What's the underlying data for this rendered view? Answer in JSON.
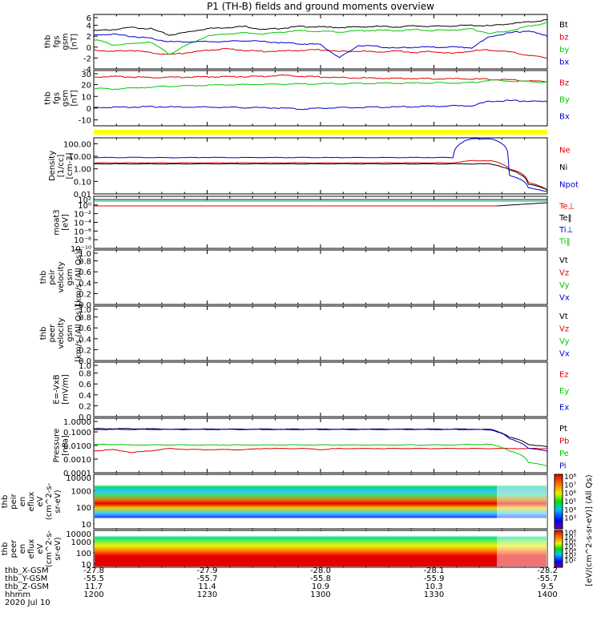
{
  "title": "P1 (TH-B) fields and ground moments overview",
  "colors": {
    "black": "#000000",
    "red": "#e00000",
    "green": "#00c800",
    "blue": "#0000d0",
    "yellow": "#ffff00"
  },
  "chart_data": [
    {
      "id": "fgs",
      "type": "line",
      "ylabel": [
        "thb",
        "fgs",
        "gsm",
        "[nT]"
      ],
      "ylim": [
        -4,
        6
      ],
      "yticks": [
        6,
        4,
        2,
        0,
        -2,
        -4
      ],
      "series": [
        {
          "name": "Bt",
          "color": "#000000",
          "values": [
            3.0,
            3.2,
            3.6,
            3.4,
            2.2,
            2.8,
            3.4,
            3.6,
            3.8,
            3.2,
            3.5,
            3.8,
            3.7,
            3.6,
            3.7,
            3.8,
            3.7,
            3.9,
            3.8,
            3.9,
            4.0,
            3.9,
            4.3,
            4.6,
            5.0
          ]
        },
        {
          "name": "bz",
          "color": "#e00000",
          "values": [
            -0.5,
            -0.8,
            -0.6,
            -1.0,
            -1.4,
            -1.0,
            -0.6,
            -0.3,
            -0.6,
            -0.8,
            -0.7,
            -0.6,
            -0.5,
            -0.8,
            -0.7,
            -0.9,
            -0.7,
            -1.0,
            -0.8,
            -1.2,
            -0.7,
            -0.5,
            -0.9,
            -1.5,
            -2.0
          ]
        },
        {
          "name": "by",
          "color": "#00c800",
          "values": [
            1.5,
            0.4,
            0.6,
            1.0,
            -1.3,
            0.5,
            2.0,
            2.4,
            2.6,
            2.4,
            2.8,
            3.0,
            2.9,
            2.8,
            3.0,
            3.1,
            3.0,
            3.2,
            3.0,
            3.2,
            3.3,
            2.5,
            3.0,
            3.8,
            4.5
          ]
        },
        {
          "name": "bx",
          "color": "#0000d0",
          "values": [
            2.2,
            2.4,
            2.0,
            1.6,
            1.0,
            1.0,
            1.0,
            1.0,
            1.2,
            1.0,
            0.8,
            0.6,
            0.5,
            -2.0,
            0.3,
            0.1,
            -0.2,
            0.0,
            0.0,
            0.0,
            -0.1,
            2.0,
            2.6,
            3.0,
            2.0
          ]
        }
      ]
    },
    {
      "id": "fgs2",
      "type": "line",
      "ylabel": [
        "thb",
        "fgs",
        "gsm",
        "[nT]"
      ],
      "ylim": [
        -15,
        32
      ],
      "yticks": [
        30,
        20,
        10,
        0,
        -10
      ],
      "series": [
        {
          "name": "Bz",
          "color": "#e00000",
          "values": [
            26.5,
            27.0,
            26.5,
            26.0,
            26.2,
            26.4,
            26.6,
            26.8,
            26.9,
            27.0,
            28.0,
            27.0,
            26.5,
            26.0,
            25.8,
            25.5,
            25.4,
            25.2,
            25.0,
            25.0,
            24.8,
            24.6,
            24.0,
            23.2,
            22.5
          ]
        },
        {
          "name": "By",
          "color": "#00c800",
          "values": [
            17.0,
            16.2,
            17.0,
            18.0,
            18.6,
            19.0,
            19.4,
            19.8,
            20.0,
            20.2,
            20.4,
            20.6,
            20.8,
            20.9,
            21.0,
            21.1,
            21.2,
            21.3,
            21.4,
            21.5,
            21.6,
            24.0,
            23.0,
            22.5,
            22.0
          ]
        },
        {
          "name": "Bx",
          "color": "#0000d0",
          "values": [
            0.5,
            0.8,
            1.0,
            1.2,
            1.1,
            1.0,
            0.8,
            0.6,
            0.5,
            0.3,
            0.1,
            -0.8,
            0.0,
            0.3,
            0.5,
            0.8,
            1.0,
            1.3,
            1.6,
            1.9,
            2.1,
            6.0,
            6.4,
            6.0,
            5.5
          ]
        }
      ]
    },
    {
      "id": "density",
      "type": "line",
      "yscale": "log",
      "ylabel": [
        "Density",
        "[1/cc]",
        "[cm-3]"
      ],
      "ylim": [
        0.01,
        300
      ],
      "ytick_labels": [
        "100.00",
        "10.00",
        "1.00",
        "0.10",
        "0.01"
      ],
      "yticks": [
        100,
        10,
        1,
        0.1,
        0.01
      ],
      "series": [
        {
          "name": "Ne",
          "color": "#e00000",
          "values": [
            3.0,
            3.0,
            3.0,
            3.0,
            3.0,
            3.0,
            3.0,
            3.0,
            3.0,
            3.0,
            3.0,
            3.0,
            3.0,
            3.0,
            3.0,
            3.0,
            3.0,
            3.0,
            3.0,
            3.0,
            4.5,
            4.5,
            1.0,
            0.08,
            0.02
          ]
        },
        {
          "name": "Ni",
          "color": "#000000",
          "values": [
            2.5,
            2.5,
            2.5,
            2.5,
            2.5,
            2.5,
            2.5,
            2.5,
            2.5,
            2.5,
            2.5,
            2.5,
            2.5,
            2.5,
            2.5,
            2.5,
            2.5,
            2.5,
            2.5,
            2.5,
            2.5,
            2.5,
            0.8,
            0.06,
            0.02
          ]
        },
        {
          "name": "Npot",
          "color": "#0000d0",
          "values": [
            8.0,
            8.0,
            8.2,
            8.0,
            7.8,
            8.0,
            8.2,
            8.0,
            8.0,
            8.1,
            8.0,
            8.0,
            8.0,
            8.0,
            8.0,
            8.0,
            8.0,
            8.0,
            8.0,
            8.0,
            250,
            250,
            0.3,
            0.03,
            0.015
          ]
        }
      ]
    },
    {
      "id": "moat3",
      "type": "line",
      "yscale": "log",
      "ylabel": [
        "moat3",
        "[eV]"
      ],
      "ytick_labels": [
        "10²",
        "10⁰",
        "10⁻²",
        "10⁻⁴",
        "10⁻⁶",
        "10⁻⁸",
        "10⁻¹⁰"
      ],
      "series": [
        {
          "name": "Te⊥",
          "color": "#e00000"
        },
        {
          "name": "Te‖",
          "color": "#000000"
        },
        {
          "name": "Ti⊥",
          "color": "#0000d0"
        },
        {
          "name": "Ti‖",
          "color": "#00c800"
        }
      ]
    },
    {
      "id": "peir_vel",
      "type": "line",
      "ylabel": [
        "thb",
        "peir",
        "velocity",
        "gsm",
        "[km/s (All Qs)]"
      ],
      "ylim": [
        0,
        1
      ],
      "ytick_labels": [
        "1.0",
        "0.8",
        "0.6",
        "0.4",
        "0.2",
        "0.0"
      ],
      "series": [
        {
          "name": "Vt",
          "color": "#000000"
        },
        {
          "name": "Vz",
          "color": "#e00000"
        },
        {
          "name": "Vy",
          "color": "#00c800"
        },
        {
          "name": "Vx",
          "color": "#0000d0"
        }
      ]
    },
    {
      "id": "peer_vel",
      "type": "line",
      "ylabel": [
        "thb",
        "peer",
        "velocity",
        "gsm",
        "[km/s (All Qs)]"
      ],
      "ylim": [
        0,
        1
      ],
      "ytick_labels": [
        "1.0",
        "0.8",
        "0.6",
        "0.4",
        "0.2",
        "0.0"
      ],
      "series": [
        {
          "name": "Vt",
          "color": "#000000"
        },
        {
          "name": "Vz",
          "color": "#e00000"
        },
        {
          "name": "Vy",
          "color": "#00c800"
        },
        {
          "name": "Vx",
          "color": "#0000d0"
        }
      ]
    },
    {
      "id": "efield",
      "type": "line",
      "ylabel": [
        "E=-VxB",
        "[mV/m]"
      ],
      "ylim": [
        0,
        1
      ],
      "ytick_labels": [
        "1.0",
        "0.8",
        "0.6",
        "0.4",
        "0.2",
        "0.0"
      ],
      "series": [
        {
          "name": "Ez",
          "color": "#e00000"
        },
        {
          "name": "Ey",
          "color": "#00c800"
        },
        {
          "name": "Ex",
          "color": "#0000d0"
        }
      ]
    },
    {
      "id": "pressure",
      "type": "line",
      "yscale": "log",
      "ylabel": [
        "Pressure",
        "[nPa]"
      ],
      "ylim": [
        0.0001,
        1
      ],
      "ytick_labels": [
        "1.0000",
        "0.1000",
        "0.0100",
        "0.0010",
        "0.0001"
      ],
      "yticks": [
        1,
        0.1,
        0.01,
        0.001,
        0.0001
      ],
      "series": [
        {
          "name": "Pt",
          "color": "#000000",
          "values": [
            0.17,
            0.17,
            0.17,
            0.17,
            0.16,
            0.16,
            0.16,
            0.16,
            0.16,
            0.16,
            0.16,
            0.16,
            0.16,
            0.16,
            0.16,
            0.16,
            0.16,
            0.16,
            0.16,
            0.16,
            0.16,
            0.15,
            0.04,
            0.012,
            0.008
          ]
        },
        {
          "name": "Pb",
          "color": "#e00000",
          "values": [
            0.004,
            0.005,
            0.003,
            0.004,
            0.006,
            0.005,
            0.005,
            0.005,
            0.005,
            0.006,
            0.006,
            0.006,
            0.005,
            0.006,
            0.006,
            0.006,
            0.006,
            0.006,
            0.006,
            0.006,
            0.006,
            0.006,
            0.006,
            0.006,
            0.006
          ]
        },
        {
          "name": "Pe",
          "color": "#00c800",
          "values": [
            0.012,
            0.012,
            0.011,
            0.011,
            0.011,
            0.011,
            0.011,
            0.011,
            0.011,
            0.011,
            0.011,
            0.011,
            0.011,
            0.011,
            0.011,
            0.011,
            0.011,
            0.011,
            0.011,
            0.011,
            0.012,
            0.012,
            0.004,
            0.0006,
            0.0003
          ]
        },
        {
          "name": "Pi",
          "color": "#0000d0",
          "values": [
            0.15,
            0.15,
            0.15,
            0.15,
            0.15,
            0.15,
            0.15,
            0.15,
            0.15,
            0.15,
            0.15,
            0.15,
            0.15,
            0.15,
            0.15,
            0.15,
            0.15,
            0.15,
            0.15,
            0.15,
            0.15,
            0.14,
            0.03,
            0.006,
            0.004
          ]
        }
      ]
    },
    {
      "id": "peir_eflux",
      "type": "heatmap",
      "yscale": "log",
      "ylabel": [
        "thb",
        "peir",
        "en",
        "eflux",
        "eV",
        "(cm^2-s-",
        "sr-eV)"
      ],
      "ytick_labels": [
        "10000",
        "1000",
        "100",
        "10"
      ],
      "yticks": [
        10000,
        1000,
        100,
        10
      ],
      "ylim": [
        5,
        10000
      ],
      "colorbar_label": "[eV/(cm^2-s-sr-eV)] (All Qs)",
      "colorbar_ticks": [
        "10⁸",
        "10⁷",
        "10⁶",
        "10⁵",
        "10⁴",
        "10³"
      ]
    },
    {
      "id": "peer_eflux",
      "type": "heatmap",
      "yscale": "log",
      "ylabel": [
        "thb",
        "peer",
        "en",
        "eflux",
        "eV",
        "(cm^2-s-",
        "sr-eV)"
      ],
      "ytick_labels": [
        "10000",
        "1000",
        "100",
        "10"
      ],
      "yticks": [
        10000,
        1000,
        100,
        10
      ],
      "ylim": [
        5,
        10000
      ],
      "colorbar_label": "[eV/(cm^2-s-sr-eV)] (All Qs)",
      "colorbar_ticks": [
        "10⁸",
        "10⁷",
        "10⁶",
        "10⁵",
        "10⁴",
        "10³",
        "10²"
      ]
    }
  ],
  "xaxis": {
    "rows": [
      {
        "label": "thb_X-GSM",
        "values": [
          "-27.8",
          "-27.9",
          "-28.0",
          "-28.1",
          "-28.2"
        ]
      },
      {
        "label": "thb_Y-GSM",
        "values": [
          "-55.5",
          "-55.7",
          "-55.8",
          "-55.9",
          "-55.7"
        ]
      },
      {
        "label": "thb_Z-GSM",
        "values": [
          "11.7",
          "11.4",
          "10.9",
          "10.3",
          "9.5"
        ]
      },
      {
        "label": "hhmm",
        "values": [
          "1200",
          "1230",
          "1300",
          "1330",
          "1400"
        ]
      }
    ],
    "date": "2020 Jul 10"
  }
}
